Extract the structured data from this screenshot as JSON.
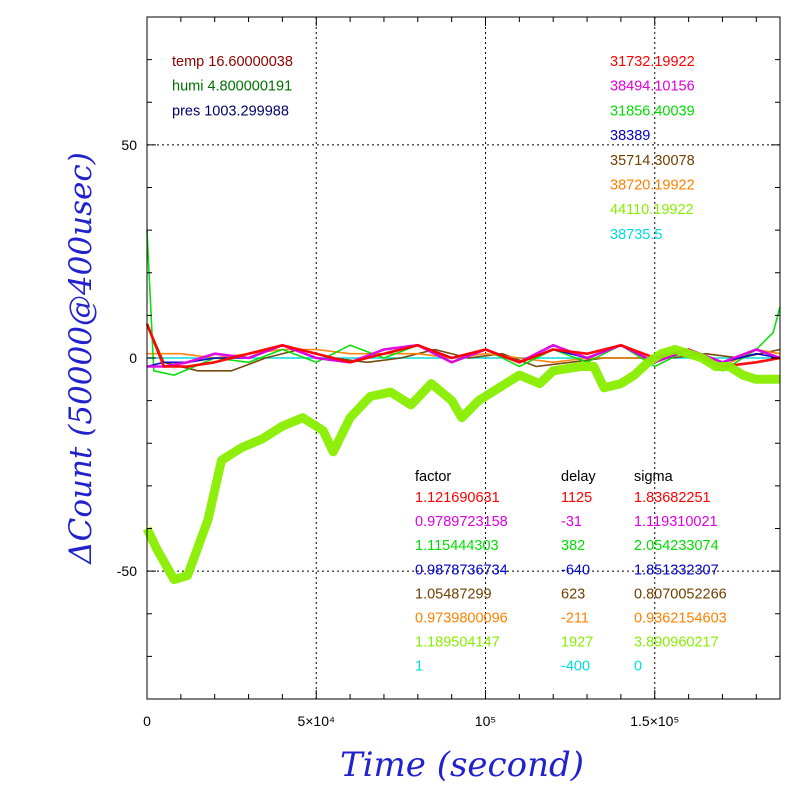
{
  "chart_data": {
    "type": "line",
    "xlabel": "Time (second)",
    "ylabel": "ΔCount (50000@400usec)",
    "xlim": [
      0,
      187000
    ],
    "ylim": [
      -80,
      80
    ],
    "grid": true,
    "x_ticks": [
      {
        "value": 0,
        "label": "0"
      },
      {
        "value": 50000,
        "label": "5×10⁴"
      },
      {
        "value": 100000,
        "label": "10⁵"
      },
      {
        "value": 150000,
        "label": "1.5×10⁵"
      }
    ],
    "y_ticks": [
      {
        "value": 50,
        "label": "50"
      },
      {
        "value": 0,
        "label": "0"
      },
      {
        "value": -50,
        "label": "-50"
      }
    ],
    "env": [
      {
        "text": "temp 16.60000038",
        "color": "#8b0000"
      },
      {
        "text": "humi 4.800000191",
        "color": "#007000"
      },
      {
        "text": "pres 1003.299988",
        "color": "#00006b"
      }
    ],
    "table_headers": [
      "factor",
      "delay",
      "sigma"
    ],
    "series": [
      {
        "mean": "31732.19922",
        "factor": "1.121690631",
        "delay": "1125",
        "sigma": "1.83682251",
        "color": "#ff0000",
        "points": [
          [
            0,
            8
          ],
          [
            5000,
            -2
          ],
          [
            12000,
            -2
          ],
          [
            20000,
            -1
          ],
          [
            30000,
            1
          ],
          [
            40000,
            3
          ],
          [
            50000,
            1
          ],
          [
            60000,
            -1
          ],
          [
            70000,
            1
          ],
          [
            80000,
            3
          ],
          [
            90000,
            0
          ],
          [
            100000,
            2
          ],
          [
            110000,
            -1
          ],
          [
            120000,
            2
          ],
          [
            130000,
            1
          ],
          [
            140000,
            3
          ],
          [
            150000,
            0
          ],
          [
            160000,
            2
          ],
          [
            170000,
            -2
          ],
          [
            180000,
            -1
          ],
          [
            187000,
            0
          ]
        ]
      },
      {
        "mean": "38494.10156",
        "factor": "0.9789723158",
        "delay": "-31",
        "sigma": "1.119310021",
        "color": "#e000e0",
        "points": [
          [
            0,
            -2
          ],
          [
            5000,
            -2
          ],
          [
            12000,
            -1
          ],
          [
            20000,
            1
          ],
          [
            30000,
            0
          ],
          [
            40000,
            3
          ],
          [
            50000,
            0
          ],
          [
            60000,
            -1
          ],
          [
            70000,
            2
          ],
          [
            80000,
            3
          ],
          [
            90000,
            -1
          ],
          [
            100000,
            2
          ],
          [
            110000,
            -1
          ],
          [
            120000,
            3
          ],
          [
            130000,
            0
          ],
          [
            140000,
            3
          ],
          [
            150000,
            -1
          ],
          [
            160000,
            2
          ],
          [
            170000,
            -1
          ],
          [
            180000,
            2
          ],
          [
            187000,
            0
          ]
        ]
      },
      {
        "mean": "31856.40039",
        "factor": "1.115444303",
        "delay": "382",
        "sigma": "2.054233074",
        "color": "#00dd00",
        "points": [
          [
            0,
            30
          ],
          [
            2000,
            -3
          ],
          [
            8000,
            -4
          ],
          [
            20000,
            0
          ],
          [
            30000,
            -1
          ],
          [
            40000,
            2
          ],
          [
            50000,
            -1
          ],
          [
            60000,
            3
          ],
          [
            70000,
            0
          ],
          [
            80000,
            3
          ],
          [
            90000,
            -1
          ],
          [
            100000,
            2
          ],
          [
            110000,
            -2
          ],
          [
            120000,
            2
          ],
          [
            130000,
            -1
          ],
          [
            140000,
            3
          ],
          [
            150000,
            -2
          ],
          [
            160000,
            2
          ],
          [
            170000,
            -3
          ],
          [
            180000,
            2
          ],
          [
            185000,
            6
          ],
          [
            187000,
            12
          ]
        ]
      },
      {
        "mean": "38389",
        "factor": "0.9878736734",
        "delay": "-640",
        "sigma": "1.851332307",
        "color": "#0000cc",
        "points": [
          [
            0,
            -2
          ],
          [
            5000,
            -1
          ],
          [
            12000,
            -1
          ],
          [
            20000,
            0
          ],
          [
            30000,
            0
          ],
          [
            40000,
            3
          ],
          [
            50000,
            0
          ],
          [
            60000,
            -1
          ],
          [
            70000,
            1
          ],
          [
            80000,
            3
          ],
          [
            90000,
            0
          ],
          [
            100000,
            2
          ],
          [
            110000,
            -1
          ],
          [
            120000,
            2
          ],
          [
            130000,
            0
          ],
          [
            140000,
            3
          ],
          [
            150000,
            -1
          ],
          [
            160000,
            2
          ],
          [
            170000,
            -1
          ],
          [
            180000,
            1
          ],
          [
            187000,
            0
          ]
        ]
      },
      {
        "mean": "35714.30078",
        "factor": "1.05487299",
        "delay": "623",
        "sigma": "0.8070052266",
        "color": "#704000",
        "points": [
          [
            0,
            8
          ],
          [
            5000,
            -1
          ],
          [
            15000,
            -3
          ],
          [
            25000,
            -3
          ],
          [
            35000,
            0
          ],
          [
            45000,
            2
          ],
          [
            55000,
            0
          ],
          [
            65000,
            -1
          ],
          [
            75000,
            0
          ],
          [
            85000,
            2
          ],
          [
            95000,
            0
          ],
          [
            105000,
            1
          ],
          [
            115000,
            -2
          ],
          [
            125000,
            -1
          ],
          [
            135000,
            0
          ],
          [
            145000,
            0
          ],
          [
            155000,
            0
          ],
          [
            165000,
            1
          ],
          [
            175000,
            0
          ],
          [
            187000,
            2
          ]
        ]
      },
      {
        "mean": "38720.19922",
        "factor": "0.9739800096",
        "delay": "-211",
        "sigma": "0.9362154603",
        "color": "#ff8000",
        "points": [
          [
            0,
            1
          ],
          [
            10000,
            1
          ],
          [
            20000,
            0
          ],
          [
            30000,
            1
          ],
          [
            40000,
            2
          ],
          [
            50000,
            2
          ],
          [
            60000,
            1
          ],
          [
            70000,
            1
          ],
          [
            80000,
            1
          ],
          [
            90000,
            0
          ],
          [
            100000,
            1
          ],
          [
            110000,
            0
          ],
          [
            120000,
            -1
          ],
          [
            130000,
            0
          ],
          [
            140000,
            0
          ],
          [
            150000,
            0
          ],
          [
            160000,
            1
          ],
          [
            170000,
            -2
          ],
          [
            180000,
            2
          ],
          [
            187000,
            1
          ]
        ]
      },
      {
        "mean": "44110.19922",
        "factor": "1.189504147",
        "delay": "1927",
        "sigma": "3.890960217",
        "color": "#88ee00",
        "points": [
          [
            0,
            -40
          ],
          [
            3000,
            -45
          ],
          [
            8000,
            -52
          ],
          [
            12000,
            -51
          ],
          [
            18000,
            -38
          ],
          [
            22000,
            -24
          ],
          [
            28000,
            -21
          ],
          [
            34000,
            -19
          ],
          [
            40000,
            -16
          ],
          [
            46000,
            -14
          ],
          [
            52000,
            -17
          ],
          [
            55000,
            -22
          ],
          [
            60000,
            -14
          ],
          [
            66000,
            -9
          ],
          [
            72000,
            -8
          ],
          [
            78000,
            -11
          ],
          [
            84000,
            -6
          ],
          [
            90000,
            -10
          ],
          [
            93000,
            -14
          ],
          [
            98000,
            -10
          ],
          [
            104000,
            -7
          ],
          [
            110000,
            -4
          ],
          [
            116000,
            -6
          ],
          [
            120000,
            -3
          ],
          [
            128000,
            -2
          ],
          [
            132000,
            -2
          ],
          [
            135000,
            -7
          ],
          [
            140000,
            -6
          ],
          [
            144000,
            -4
          ],
          [
            148000,
            -1
          ],
          [
            152000,
            1
          ],
          [
            156000,
            2
          ],
          [
            160000,
            1
          ],
          [
            164000,
            0
          ],
          [
            168000,
            -2
          ],
          [
            172000,
            -2
          ],
          [
            176000,
            -4
          ],
          [
            180000,
            -5
          ],
          [
            183000,
            -5
          ],
          [
            187000,
            -5
          ]
        ]
      },
      {
        "mean": "38735.5",
        "factor": "1",
        "delay": "-400",
        "sigma": "0",
        "color": "#00dddd",
        "points": [
          [
            0,
            0
          ],
          [
            40000,
            0
          ],
          [
            80000,
            0
          ],
          [
            120000,
            0
          ],
          [
            160000,
            0
          ],
          [
            187000,
            0
          ]
        ]
      }
    ]
  }
}
